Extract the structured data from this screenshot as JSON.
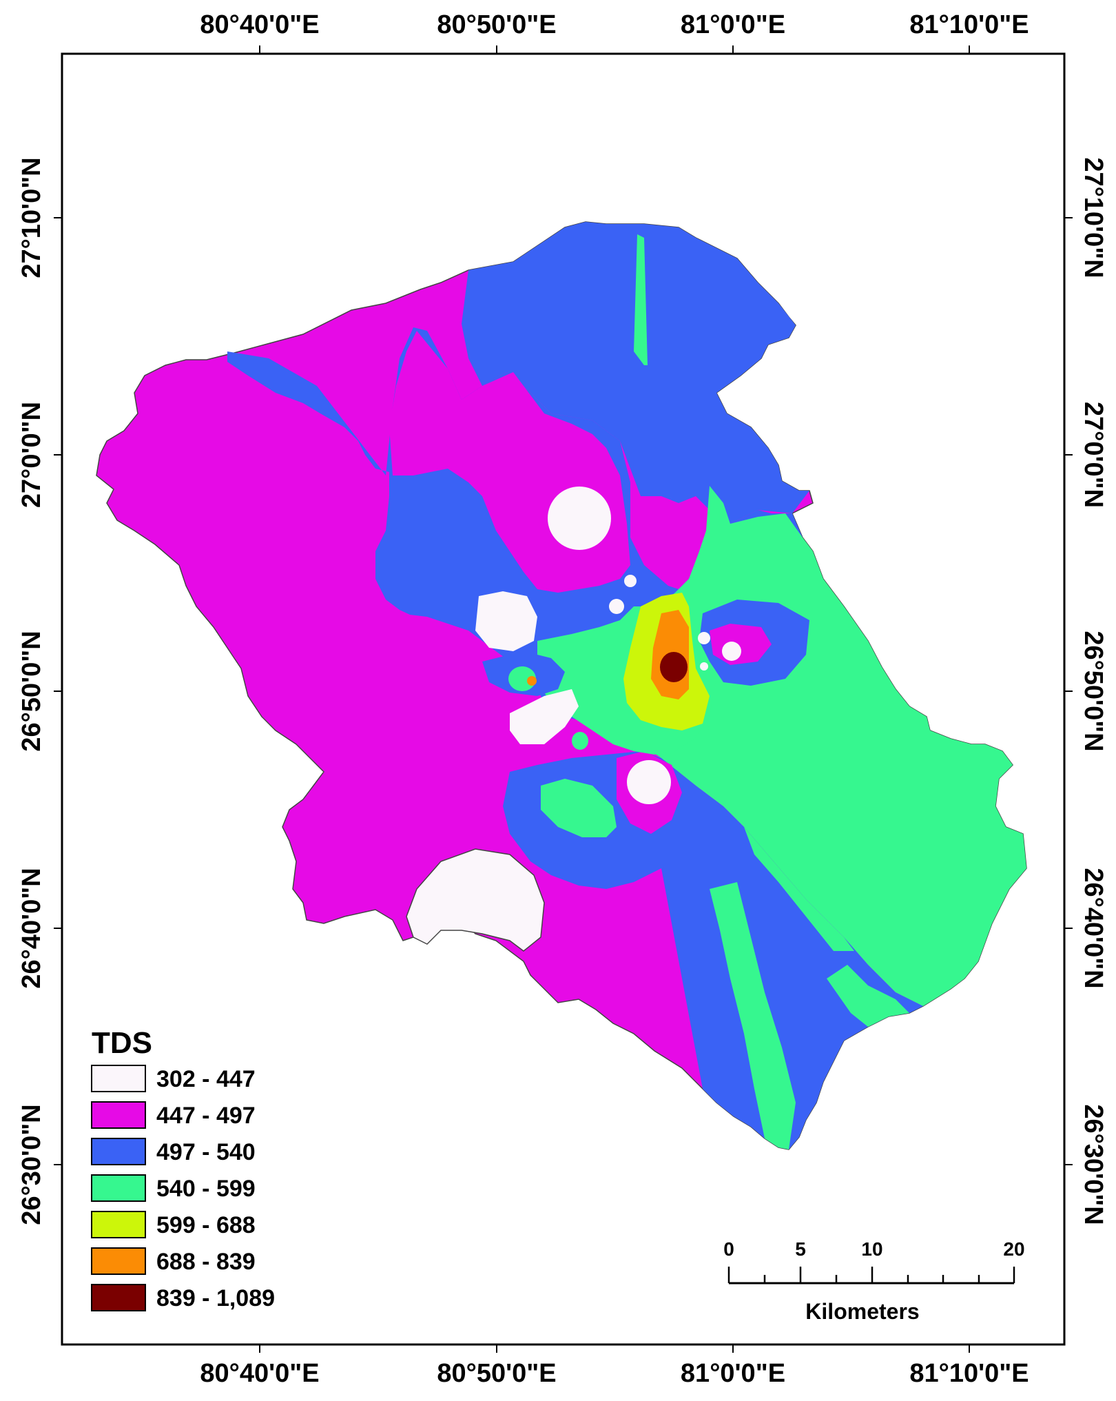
{
  "map": {
    "top_longitude_labels": [
      "80°40'0\"E",
      "80°50'0\"E",
      "81°0'0\"E",
      "81°10'0\"E"
    ],
    "bottom_longitude_labels": [
      "80°40'0\"E",
      "80°50'0\"E",
      "81°0'0\"E",
      "81°10'0\"E"
    ],
    "left_latitude_labels": [
      "27°10'0\"N",
      "27°0'0\"N",
      "26°50'0\"N",
      "26°40'0\"N",
      "26°30'0\"N"
    ],
    "right_latitude_labels": [
      "27°10'0\"N",
      "27°0'0\"N",
      "26°50'0\"N",
      "26°40'0\"N",
      "26°30'0\"N"
    ]
  },
  "legend": {
    "title": "TDS",
    "classes": [
      {
        "label": "302 - 447",
        "color": "#fbf6fb"
      },
      {
        "label": "447 - 497",
        "color": "#e60ae6"
      },
      {
        "label": "497 - 540",
        "color": "#3a62f5"
      },
      {
        "label": "540 - 599",
        "color": "#36f78f"
      },
      {
        "label": "599 - 688",
        "color": "#ccf60a"
      },
      {
        "label": "688 - 839",
        "color": "#fb8c05"
      },
      {
        "label": "839 - 1,089",
        "color": "#7a0000"
      }
    ]
  },
  "scale_bar": {
    "labels": [
      "0",
      "5",
      "10",
      "20"
    ],
    "unit": "Kilometers"
  }
}
